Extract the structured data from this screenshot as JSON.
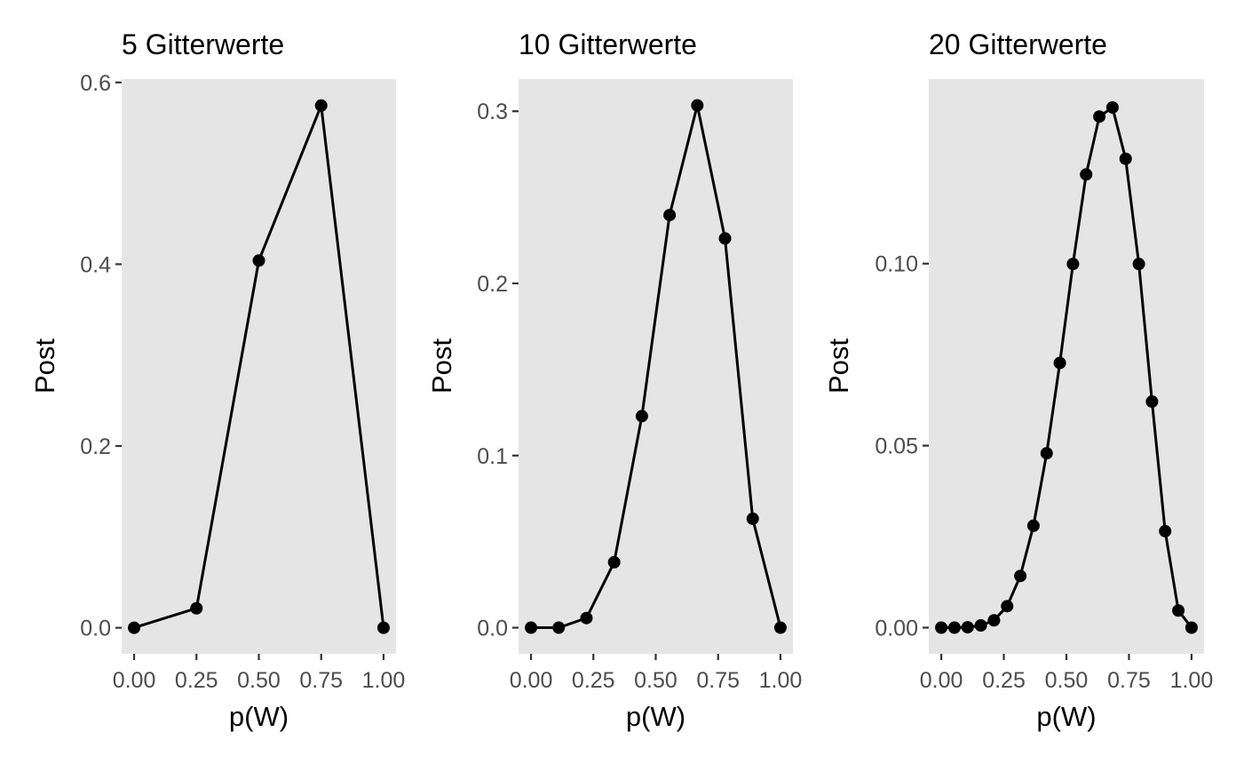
{
  "chart_data": [
    {
      "type": "line",
      "title": "5 Gitterwerte",
      "xlabel": "p(W)",
      "ylabel": "Post",
      "xlim": [
        -0.05,
        1.05
      ],
      "ylim": [
        -0.0287,
        0.6037
      ],
      "xticks": [
        0,
        0.25,
        0.5,
        0.75,
        1
      ],
      "xtick_labels": [
        "0.00",
        "0.25",
        "0.50",
        "0.75",
        "1.00"
      ],
      "yticks": [
        0,
        0.2,
        0.4,
        0.6
      ],
      "ytick_labels": [
        "0.0",
        "0.2",
        "0.4",
        "0.6"
      ],
      "grid": false,
      "panel_background": "#e5e5e5",
      "line_color": "#000000",
      "x": [
        0,
        0.25,
        0.5,
        0.75,
        1
      ],
      "y": [
        0.0,
        0.0214,
        0.404,
        0.5746,
        0.0
      ]
    },
    {
      "type": "line",
      "title": "10 Gitterwerte",
      "xlabel": "p(W)",
      "ylabel": "Post",
      "xlim": [
        -0.05,
        1.05
      ],
      "ylim": [
        -0.0152,
        0.3187
      ],
      "xticks": [
        0,
        0.25,
        0.5,
        0.75,
        1
      ],
      "xtick_labels": [
        "0.00",
        "0.25",
        "0.50",
        "0.75",
        "1.00"
      ],
      "yticks": [
        0,
        0.1,
        0.2,
        0.3
      ],
      "ytick_labels": [
        "0.0",
        "0.1",
        "0.2",
        "0.3"
      ],
      "grid": false,
      "panel_background": "#e5e5e5",
      "line_color": "#000000",
      "x": [
        0,
        0.1111,
        0.2222,
        0.3333,
        0.4444,
        0.5556,
        0.6667,
        0.7778,
        0.8889,
        1
      ],
      "y": [
        0.0,
        0.0,
        0.0056,
        0.038,
        0.1229,
        0.2397,
        0.3034,
        0.2261,
        0.0633,
        0.0
      ]
    },
    {
      "type": "line",
      "title": "20 Gitterwerte",
      "xlabel": "p(W)",
      "ylabel": "Post",
      "xlim": [
        -0.05,
        1.05
      ],
      "ylim": [
        -0.0072,
        0.1507
      ],
      "xticks": [
        0,
        0.25,
        0.5,
        0.75,
        1
      ],
      "xtick_labels": [
        "0.00",
        "0.25",
        "0.50",
        "0.75",
        "1.00"
      ],
      "yticks": [
        0,
        0.05,
        0.1
      ],
      "ytick_labels": [
        "0.00",
        "0.05",
        "0.10"
      ],
      "grid": false,
      "panel_background": "#e5e5e5",
      "line_color": "#000000",
      "x": [
        0,
        0.0526,
        0.1053,
        0.1579,
        0.2105,
        0.2632,
        0.3158,
        0.3684,
        0.4211,
        0.4737,
        0.5263,
        0.5789,
        0.6316,
        0.6842,
        0.7368,
        0.7895,
        0.8421,
        0.8947,
        0.9474,
        1
      ],
      "y": [
        0.0,
        0.0,
        0.0001,
        0.0006,
        0.002,
        0.0059,
        0.0142,
        0.028,
        0.0479,
        0.0727,
        0.0999,
        0.1245,
        0.1404,
        0.1429,
        0.1288,
        0.0999,
        0.0621,
        0.0265,
        0.0047,
        0.0
      ]
    }
  ]
}
